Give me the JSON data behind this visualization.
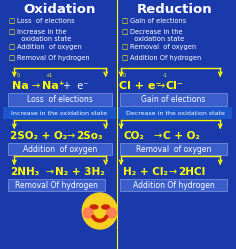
{
  "bg_color": "#1a3aab",
  "title_left": "Oxidation",
  "title_right": "Reduction",
  "title_color": "#ffffff",
  "title_fontsize": 9.5,
  "bullet_color": "#ffff00",
  "text_color": "#ffffff",
  "bullet_fontsize": 4.8,
  "ox_bullets": [
    "Loss  of elections",
    "Increase in the\n  oxidation state",
    "Addition  of oxygen",
    "Removal Of hydrogen"
  ],
  "red_bullets": [
    "Gain of elections",
    "Decrease in the\n  oxidation state",
    "Removal  of oxygen",
    "Addition Of hydrogen"
  ],
  "divider_color": "#ffff00",
  "box_bg": "#3a5fcc",
  "arrow_color": "#ffff00",
  "na_label": "Loss  of elections",
  "cl_label": "Gain of elections",
  "mid_label_ox": "Increase in the oxidation state",
  "mid_label_red": "Decrease in the oxidation state",
  "eq1_ox_label": "Addition  of oxygen",
  "eq1_red_label": "Removal  of oxygen",
  "eq2_ox_label": "Removal Of hydrogen",
  "eq2_red_label": "Addition Of hydrogen"
}
